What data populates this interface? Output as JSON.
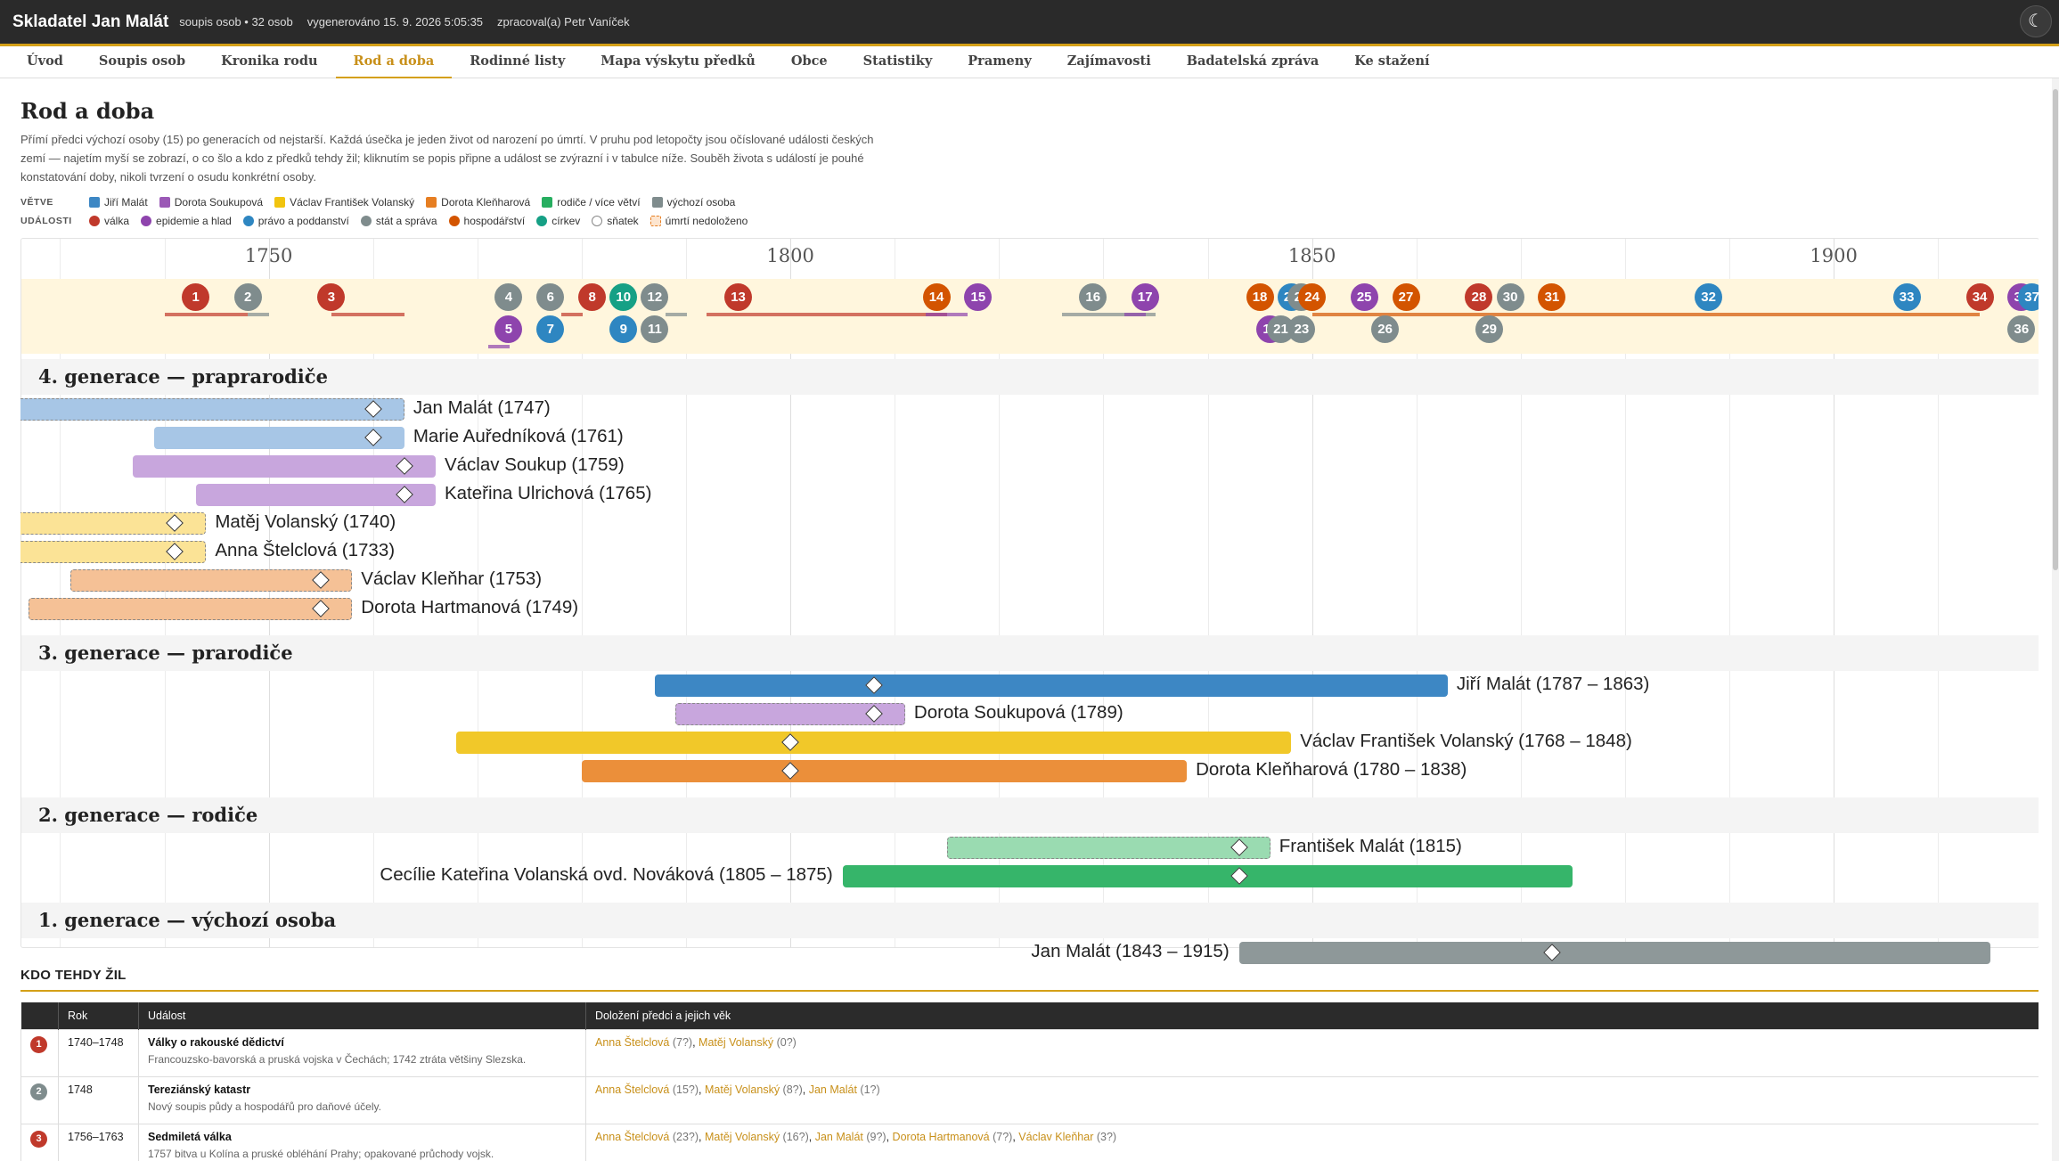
{
  "header": {
    "title": "Skladatel Jan Malát",
    "subtitle": "soupis osob • 32 osob",
    "generated": "vygenerováno 15. 9. 2026 5:05:35",
    "author": "zpracoval(a) Petr Vaníček",
    "theme_icon": "moon-icon",
    "theme_glyph": "☾"
  },
  "nav": {
    "tabs": [
      "Úvod",
      "Soupis osob",
      "Kronika rodu",
      "Rod a doba",
      "Rodinné listy",
      "Mapa výskytu předků",
      "Obce",
      "Statistiky",
      "Prameny",
      "Zajímavosti",
      "Badatelská zpráva",
      "Ke stažení"
    ],
    "active": 3
  },
  "page": {
    "title": "Rod a doba",
    "description": "Přímí předci výchozí osoby (15) po generacích od nejstarší. Každá úsečka je jeden život od narození po úmrtí. V pruhu pod letopočty jsou očíslované události českých zemí — najetím myší se zobrazí, o co šlo a kdo z předků tehdy žil; kliknutím se popis připne a událost se zvýrazní i v tabulce níže. Souběh života s událostí je pouhé konstatování doby, nikoli tvrzení o osudu konkrétní osoby."
  },
  "legend": {
    "branches_label": "VĚTVE",
    "branches": [
      {
        "label": "Jiří Malát",
        "color": "#3d87c4"
      },
      {
        "label": "Dorota Soukupová",
        "color": "#9b59b6"
      },
      {
        "label": "Václav František Volanský",
        "color": "#f1c40f"
      },
      {
        "label": "Dorota Kleňharová",
        "color": "#e67e22"
      },
      {
        "label": "rodiče / více větví",
        "color": "#27ae60"
      },
      {
        "label": "výchozí osoba",
        "color": "#7f8c8d"
      }
    ],
    "events_label": "UDÁLOSTI",
    "events": [
      {
        "label": "válka",
        "color": "#c0392b"
      },
      {
        "label": "epidemie a hlad",
        "color": "#8e44ad"
      },
      {
        "label": "právo a poddanství",
        "color": "#2e86c1"
      },
      {
        "label": "stát a správa",
        "color": "#7f8c8d"
      },
      {
        "label": "hospodářství",
        "color": "#d35400"
      },
      {
        "label": "církev",
        "color": "#16a085"
      },
      {
        "label": "sňatek",
        "color": "#ffffff"
      },
      {
        "label": "úmrtí nedoloženo",
        "color": "#f0b27a"
      }
    ]
  },
  "timeline": {
    "year_min": 1728,
    "year_max": 1923,
    "year_ticks": [
      "1750",
      "1800",
      "1850",
      "1900"
    ],
    "events": [
      {
        "n": "1",
        "type": "válka",
        "y": 1743,
        "row": 0,
        "s": 1740,
        "e": 1748
      },
      {
        "n": "2",
        "type": "stát a správa",
        "y": 1748,
        "row": 0,
        "s": 1748,
        "e": 1748
      },
      {
        "n": "3",
        "type": "válka",
        "y": 1756,
        "row": 0,
        "s": 1756,
        "e": 1763
      },
      {
        "n": "4",
        "type": "stát a správa",
        "y": 1773,
        "row": 0
      },
      {
        "n": "5",
        "type": "epidemie a hlad",
        "y": 1773,
        "row": 1,
        "s": 1771,
        "e": 1772
      },
      {
        "n": "6",
        "type": "stát a správa",
        "y": 1777,
        "row": 0
      },
      {
        "n": "7",
        "type": "právo a poddanství",
        "y": 1777,
        "row": 1
      },
      {
        "n": "8",
        "type": "válka",
        "y": 1781,
        "row": 0,
        "s": 1778,
        "e": 1779
      },
      {
        "n": "9",
        "type": "právo a poddanství",
        "y": 1784,
        "row": 1
      },
      {
        "n": "10",
        "type": "církev",
        "y": 1784,
        "row": 0
      },
      {
        "n": "11",
        "type": "stát a správa",
        "y": 1787,
        "row": 1
      },
      {
        "n": "12",
        "type": "stát a správa",
        "y": 1787,
        "row": 0,
        "s": 1788,
        "e": 1790
      },
      {
        "n": "13",
        "type": "válka",
        "y": 1795,
        "row": 0,
        "s": 1792,
        "e": 1815
      },
      {
        "n": "14",
        "type": "hospodářství",
        "y": 1814,
        "row": 0
      },
      {
        "n": "15",
        "type": "epidemie a hlad",
        "y": 1818,
        "row": 0,
        "s": 1813,
        "e": 1817
      },
      {
        "n": "16",
        "type": "stát a správa",
        "y": 1829,
        "row": 0,
        "s": 1826,
        "e": 1835
      },
      {
        "n": "17",
        "type": "epidemie a hlad",
        "y": 1834,
        "row": 0,
        "s": 1832,
        "e": 1832
      },
      {
        "n": "18",
        "type": "hospodářství",
        "y": 1845,
        "row": 0
      },
      {
        "n": "19",
        "type": "epidemie a hlad",
        "y": 1846,
        "row": 1
      },
      {
        "n": "20",
        "type": "právo a poddanství",
        "y": 1848,
        "row": 0
      },
      {
        "n": "21",
        "type": "stát a správa",
        "y": 1847,
        "row": 1
      },
      {
        "n": "22",
        "type": "stát a správa",
        "y": 1849,
        "row": 0
      },
      {
        "n": "23",
        "type": "stát a správa",
        "y": 1849,
        "row": 1
      },
      {
        "n": "24",
        "type": "hospodářství",
        "y": 1850,
        "row": 0,
        "s": 1850,
        "e": 1914
      },
      {
        "n": "25",
        "type": "epidemie a hlad",
        "y": 1855,
        "row": 0
      },
      {
        "n": "26",
        "type": "stát a správa",
        "y": 1857,
        "row": 1
      },
      {
        "n": "27",
        "type": "hospodářství",
        "y": 1859,
        "row": 0
      },
      {
        "n": "28",
        "type": "válka",
        "y": 1866,
        "row": 0
      },
      {
        "n": "29",
        "type": "stát a správa",
        "y": 1867,
        "row": 1
      },
      {
        "n": "30",
        "type": "stát a správa",
        "y": 1869,
        "row": 0
      },
      {
        "n": "31",
        "type": "hospodářství",
        "y": 1873,
        "row": 0
      },
      {
        "n": "32",
        "type": "právo a poddanství",
        "y": 1888,
        "row": 0
      },
      {
        "n": "33",
        "type": "právo a poddanství",
        "y": 1907,
        "row": 0
      },
      {
        "n": "34",
        "type": "válka",
        "y": 1914,
        "row": 0
      },
      {
        "n": "35",
        "type": "epidemie a hlad",
        "y": 1918,
        "row": 0
      },
      {
        "n": "36",
        "type": "stát a správa",
        "y": 1918,
        "row": 1
      },
      {
        "n": "37",
        "type": "právo a poddanství",
        "y": 1919,
        "row": 0
      }
    ],
    "generations": [
      {
        "title": "4. generace — praprarodiče",
        "people": [
          {
            "name": "Jan Malát (1747)",
            "s": 1725,
            "e": 1763,
            "m": 1760,
            "color": "#a7c6e6",
            "dash": true,
            "right": true
          },
          {
            "name": "Marie Auředníková (1761)",
            "s": 1739,
            "e": 1763,
            "m": 1760,
            "color": "#a7c6e6",
            "dash": false,
            "right": true
          },
          {
            "name": "Václav Soukup (1759)",
            "s": 1737,
            "e": 1766,
            "m": 1763,
            "color": "#c8a6dd",
            "dash": false,
            "right": true
          },
          {
            "name": "Kateřina Ulrichová (1765)",
            "s": 1743,
            "e": 1766,
            "m": 1763,
            "color": "#c8a6dd",
            "dash": false,
            "right": true
          },
          {
            "name": "Matěj Volanský (1740)",
            "s": 1718,
            "e": 1744,
            "m": 1741,
            "color": "#fbe396",
            "dash": true,
            "right": true
          },
          {
            "name": "Anna Štelclová (1733)",
            "s": 1711,
            "e": 1744,
            "m": 1741,
            "color": "#fbe396",
            "dash": true,
            "right": true
          },
          {
            "name": "Václav Kleňhar (1753)",
            "s": 1731,
            "e": 1758,
            "m": 1755,
            "color": "#f5c196",
            "dash": true,
            "right": true
          },
          {
            "name": "Dorota Hartmanová (1749)",
            "s": 1727,
            "e": 1758,
            "m": 1755,
            "color": "#f5c196",
            "dash": true,
            "right": true
          }
        ]
      },
      {
        "title": "3. generace — prarodiče",
        "people": [
          {
            "name": "Jiří Malát (1787 – 1863)",
            "s": 1787,
            "e": 1863,
            "m": 1808,
            "color": "#3d87c4",
            "dash": false,
            "right": true
          },
          {
            "name": "Dorota Soukupová (1789)",
            "s": 1789,
            "e": 1811,
            "m": 1808,
            "color": "#c8a6dd",
            "dash": true,
            "right": true
          },
          {
            "name": "Václav František Volanský (1768 – 1848)",
            "s": 1768,
            "e": 1848,
            "m": 1800,
            "color": "#f1c829",
            "dash": false,
            "right": true
          },
          {
            "name": "Dorota Kleňharová (1780 – 1838)",
            "s": 1780,
            "e": 1838,
            "m": 1800,
            "color": "#eb8f3a",
            "dash": false,
            "right": true
          }
        ]
      },
      {
        "title": "2. generace — rodiče",
        "people": [
          {
            "name": "František Malát (1815)",
            "s": 1815,
            "e": 1846,
            "m": 1843,
            "color": "#9adbb1",
            "dash": true,
            "right": true
          },
          {
            "name": "Cecílie Kateřina Volanská ovd. Nováková (1805 – 1875)",
            "s": 1805,
            "e": 1875,
            "m": 1843,
            "color": "#36b56a",
            "dash": false,
            "right": false
          }
        ]
      },
      {
        "title": "1. generace — výchozí osoba",
        "people": [
          {
            "name": "Jan Malát (1843 – 1915)",
            "s": 1843,
            "e": 1915,
            "m": 1873,
            "color": "#8e9899",
            "dash": false,
            "right": false
          }
        ]
      }
    ]
  },
  "table": {
    "heading": "KDO TEHDY ŽIL",
    "columns": [
      "",
      "Rok",
      "Událost",
      "Doložení předci a jejich věk"
    ],
    "rows": [
      {
        "n": "1",
        "color": "#c0392b",
        "year": "1740–1748",
        "event": "Války o rakouské dědictví",
        "desc": "Francouzsko-bavorská a pruská vojska v Čechách; 1742 ztráta většiny Slezska.",
        "people": [
          {
            "name": "Anna Štelclová",
            "age": " (7?)"
          },
          {
            "name": "Matěj Volanský",
            "age": " (0?)"
          }
        ]
      },
      {
        "n": "2",
        "color": "#7f8c8d",
        "year": "1748",
        "event": "Tereziánský katastr",
        "desc": "Nový soupis půdy a hospodářů pro daňové účely.",
        "people": [
          {
            "name": "Anna Štelclová",
            "age": " (15?)"
          },
          {
            "name": "Matěj Volanský",
            "age": " (8?)"
          },
          {
            "name": "Jan Malát",
            "age": " (1?)"
          }
        ]
      },
      {
        "n": "3",
        "color": "#c0392b",
        "year": "1756–1763",
        "event": "Sedmiletá válka",
        "desc": "1757 bitva u Kolína a pruské obléhání Prahy; opakované průchody vojsk.",
        "people": [
          {
            "name": "Anna Štelclová",
            "age": " (23?)"
          },
          {
            "name": "Matěj Volanský",
            "age": " (16?)"
          },
          {
            "name": "Jan Malát",
            "age": " (9?)"
          },
          {
            "name": "Dorota Hartmanová",
            "age": " (7?)"
          },
          {
            "name": "Václav Kleňhar",
            "age": " (3?)"
          }
        ]
      }
    ]
  }
}
